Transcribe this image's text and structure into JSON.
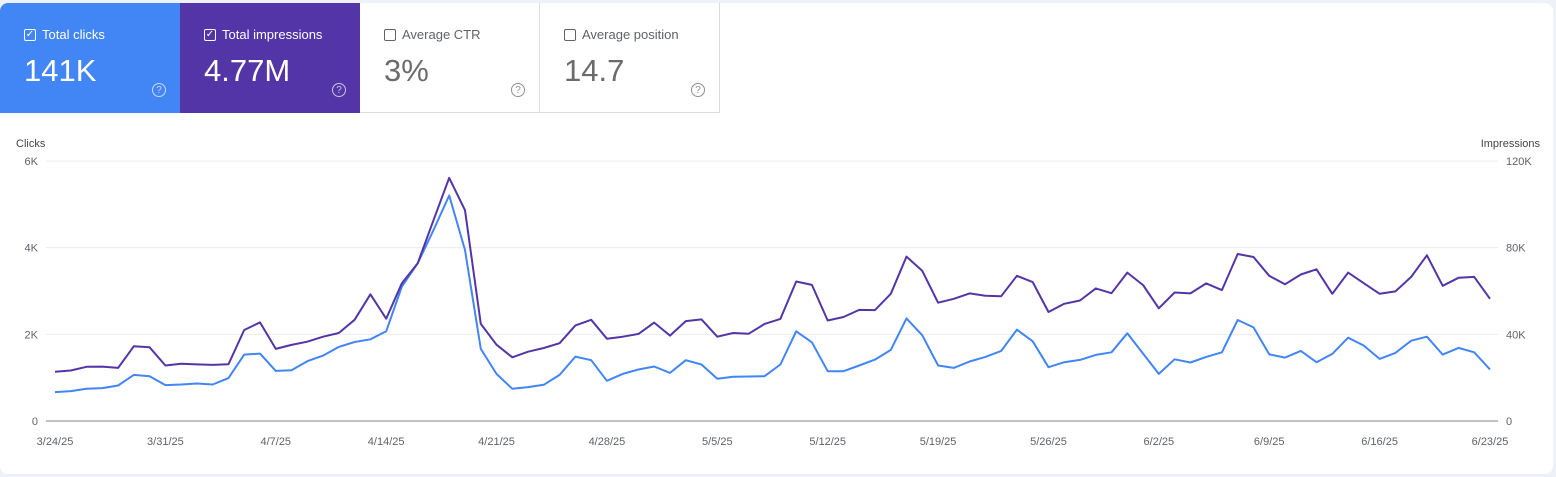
{
  "metrics": [
    {
      "label": "Total clicks",
      "value": "141K",
      "checked": true,
      "color": "#4285f4"
    },
    {
      "label": "Total impressions",
      "value": "4.77M",
      "checked": true,
      "color": "#5335a8"
    },
    {
      "label": "Average CTR",
      "value": "3%",
      "checked": false
    },
    {
      "label": "Average position",
      "value": "14.7",
      "checked": false
    }
  ],
  "icons": {
    "checkbox": "checkbox-icon",
    "help": "help-circle-icon"
  },
  "chart_data": {
    "type": "line",
    "ylabel": "Clicks",
    "y2label": "Impressions",
    "ylim": [
      0,
      6000
    ],
    "y2lim": [
      0,
      120000
    ],
    "yticks": [
      "0",
      "2K",
      "4K",
      "6K"
    ],
    "y2ticks": [
      "0",
      "40K",
      "80K",
      "120K"
    ],
    "xticks": [
      "3/24/25",
      "3/31/25",
      "4/7/25",
      "4/14/25",
      "4/21/25",
      "4/28/25",
      "5/5/25",
      "5/12/25",
      "5/19/25",
      "5/26/25",
      "6/2/25",
      "6/9/25",
      "6/16/25",
      "6/23/25"
    ],
    "x_start": "2025-03-24",
    "x_end": "2025-06-23",
    "grid": true,
    "series": [
      {
        "name": "Clicks",
        "axis": "left",
        "color": "#4285f4",
        "values": [
          667,
          690,
          743,
          759,
          820,
          1065,
          1034,
          828,
          843,
          866,
          843,
          989,
          1533,
          1556,
          1157,
          1172,
          1379,
          1510,
          1709,
          1824,
          1885,
          2069,
          3103,
          3640,
          4406,
          5203,
          3946,
          1663,
          1088,
          743,
          782,
          835,
          1065,
          1487,
          1402,
          927,
          1088,
          1188,
          1257,
          1111,
          1402,
          1303,
          973,
          1019,
          1027,
          1034,
          1303,
          2069,
          1816,
          1149,
          1149,
          1280,
          1418,
          1640,
          2368,
          1977,
          1280,
          1226,
          1372,
          1479,
          1617,
          2107,
          1839,
          1241,
          1356,
          1410,
          1525,
          1586,
          2023,
          1556,
          1088,
          1425,
          1349,
          1479,
          1586,
          2330,
          2161,
          1540,
          1464,
          1617,
          1356,
          1548,
          1923,
          1739,
          1433,
          1571,
          1854,
          1946,
          1533,
          1686,
          1586,
          1188
        ]
      },
      {
        "name": "Impressions",
        "axis": "right",
        "color": "#5335a8",
        "values": [
          22700,
          23300,
          25000,
          25100,
          24500,
          34500,
          34000,
          25600,
          26400,
          26100,
          25900,
          26200,
          42000,
          45500,
          33300,
          35100,
          36600,
          38900,
          40600,
          46700,
          58500,
          47200,
          63600,
          72800,
          92700,
          112200,
          97300,
          44800,
          35200,
          29400,
          32000,
          33700,
          35900,
          44100,
          46700,
          38000,
          38900,
          40200,
          45400,
          39400,
          46100,
          46900,
          38900,
          40600,
          40300,
          44800,
          47100,
          64400,
          62800,
          46400,
          48000,
          51300,
          51200,
          58700,
          75900,
          69300,
          54600,
          56400,
          58900,
          57800,
          57600,
          67000,
          64100,
          50300,
          54100,
          55600,
          61200,
          59000,
          68500,
          62700,
          52000,
          59300,
          58900,
          63500,
          60400,
          77100,
          75700,
          67000,
          63100,
          67600,
          70000,
          58700,
          68500,
          63600,
          58700,
          59800,
          66500,
          76500,
          62400,
          66100,
          66500,
          56400
        ]
      }
    ]
  }
}
